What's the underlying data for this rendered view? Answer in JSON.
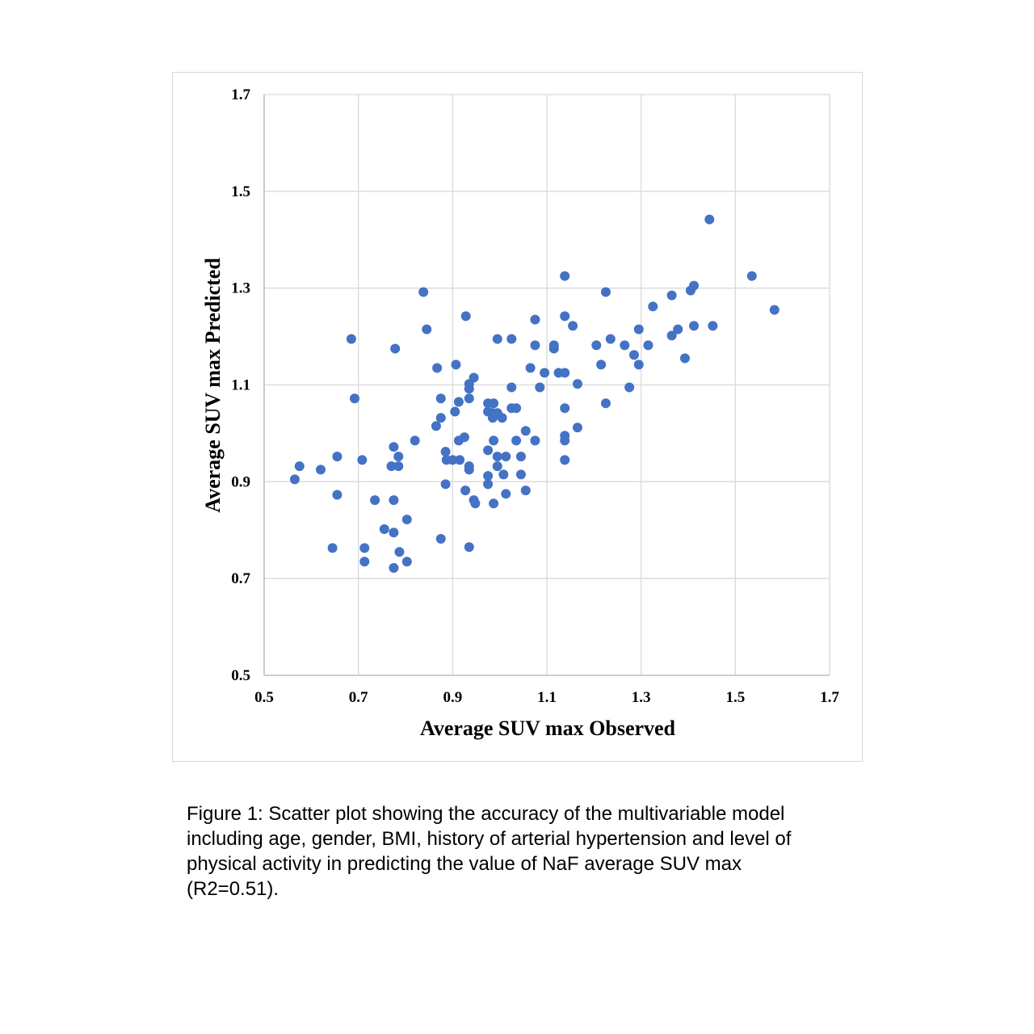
{
  "chart_data": {
    "type": "scatter",
    "xlabel": "Average SUV max Observed",
    "ylabel": "Average SUV max Predicted",
    "xlim": [
      0.5,
      1.7
    ],
    "ylim": [
      0.5,
      1.7
    ],
    "x_ticks": [
      "0.5",
      "0.7",
      "0.9",
      "1.1",
      "1.3",
      "1.5",
      "1.7"
    ],
    "y_ticks": [
      "0.5",
      "0.7",
      "0.9",
      "1.1",
      "1.3",
      "1.5",
      "1.7"
    ],
    "grid": true,
    "legend": "none",
    "marker_color": "#4472c4",
    "points": [
      [
        0.565,
        0.905
      ],
      [
        0.575,
        0.932
      ],
      [
        0.62,
        0.925
      ],
      [
        0.645,
        0.763
      ],
      [
        0.655,
        0.952
      ],
      [
        0.655,
        0.873
      ],
      [
        0.685,
        1.195
      ],
      [
        0.692,
        1.072
      ],
      [
        0.708,
        0.945
      ],
      [
        0.713,
        0.763
      ],
      [
        0.713,
        0.735
      ],
      [
        0.735,
        0.862
      ],
      [
        0.755,
        0.802
      ],
      [
        0.77,
        0.932
      ],
      [
        0.775,
        0.722
      ],
      [
        0.775,
        0.795
      ],
      [
        0.775,
        0.862
      ],
      [
        0.775,
        0.972
      ],
      [
        0.778,
        1.175
      ],
      [
        0.785,
        0.952
      ],
      [
        0.785,
        0.932
      ],
      [
        0.787,
        0.755
      ],
      [
        0.803,
        0.822
      ],
      [
        0.803,
        0.735
      ],
      [
        0.82,
        0.985
      ],
      [
        0.838,
        1.292
      ],
      [
        0.845,
        1.215
      ],
      [
        0.865,
        1.015
      ],
      [
        0.867,
        1.135
      ],
      [
        0.875,
        1.072
      ],
      [
        0.875,
        1.032
      ],
      [
        0.875,
        0.782
      ],
      [
        0.885,
        0.962
      ],
      [
        0.885,
        0.895
      ],
      [
        0.887,
        0.945
      ],
      [
        0.9,
        0.945
      ],
      [
        0.905,
        1.045
      ],
      [
        0.907,
        1.142
      ],
      [
        0.913,
        1.065
      ],
      [
        0.913,
        0.985
      ],
      [
        0.915,
        0.945
      ],
      [
        0.925,
        0.992
      ],
      [
        0.927,
        0.882
      ],
      [
        0.928,
        1.242
      ],
      [
        0.935,
        1.102
      ],
      [
        0.935,
        1.092
      ],
      [
        0.935,
        1.072
      ],
      [
        0.935,
        0.932
      ],
      [
        0.935,
        0.925
      ],
      [
        0.935,
        0.765
      ],
      [
        0.945,
        1.115
      ],
      [
        0.945,
        0.862
      ],
      [
        0.948,
        0.855
      ],
      [
        0.975,
        1.062
      ],
      [
        0.975,
        1.045
      ],
      [
        0.975,
        0.965
      ],
      [
        0.975,
        0.912
      ],
      [
        0.975,
        0.895
      ],
      [
        0.985,
        1.042
      ],
      [
        0.985,
        1.032
      ],
      [
        0.987,
        1.062
      ],
      [
        0.987,
        0.985
      ],
      [
        0.987,
        0.855
      ],
      [
        0.995,
        1.195
      ],
      [
        0.995,
        1.042
      ],
      [
        0.995,
        0.952
      ],
      [
        0.995,
        0.932
      ],
      [
        1.005,
        1.032
      ],
      [
        1.008,
        0.915
      ],
      [
        1.013,
        0.952
      ],
      [
        1.013,
        0.875
      ],
      [
        1.025,
        1.195
      ],
      [
        1.025,
        1.095
      ],
      [
        1.025,
        1.052
      ],
      [
        1.035,
        1.052
      ],
      [
        1.035,
        0.985
      ],
      [
        1.045,
        0.952
      ],
      [
        1.045,
        0.915
      ],
      [
        1.055,
        1.005
      ],
      [
        1.055,
        0.882
      ],
      [
        1.065,
        1.135
      ],
      [
        1.075,
        1.235
      ],
      [
        1.075,
        1.182
      ],
      [
        1.075,
        0.985
      ],
      [
        1.085,
        1.095
      ],
      [
        1.095,
        1.125
      ],
      [
        1.115,
        1.182
      ],
      [
        1.115,
        1.175
      ],
      [
        1.125,
        1.125
      ],
      [
        1.138,
        1.325
      ],
      [
        1.138,
        1.242
      ],
      [
        1.138,
        1.125
      ],
      [
        1.138,
        1.052
      ],
      [
        1.138,
        0.995
      ],
      [
        1.138,
        0.985
      ],
      [
        1.138,
        0.945
      ],
      [
        1.155,
        1.222
      ],
      [
        1.165,
        1.102
      ],
      [
        1.165,
        1.012
      ],
      [
        1.205,
        1.182
      ],
      [
        1.215,
        1.142
      ],
      [
        1.225,
        1.292
      ],
      [
        1.225,
        1.062
      ],
      [
        1.235,
        1.195
      ],
      [
        1.265,
        1.182
      ],
      [
        1.275,
        1.095
      ],
      [
        1.285,
        1.162
      ],
      [
        1.295,
        1.215
      ],
      [
        1.295,
        1.142
      ],
      [
        1.315,
        1.182
      ],
      [
        1.325,
        1.262
      ],
      [
        1.365,
        1.285
      ],
      [
        1.365,
        1.202
      ],
      [
        1.378,
        1.215
      ],
      [
        1.393,
        1.155
      ],
      [
        1.405,
        1.295
      ],
      [
        1.412,
        1.305
      ],
      [
        1.412,
        1.222
      ],
      [
        1.445,
        1.442
      ],
      [
        1.452,
        1.222
      ],
      [
        1.535,
        1.325
      ],
      [
        1.583,
        1.255
      ]
    ]
  },
  "caption": {
    "line1": "Figure 1: Scatter plot showing the accuracy of the multivariable model",
    "line2": "including age, gender, BMI, history of arterial hypertension and level of",
    "line3": "physical activity in predicting the value of NaF average SUV max",
    "line4": "(R2=0.51)."
  }
}
